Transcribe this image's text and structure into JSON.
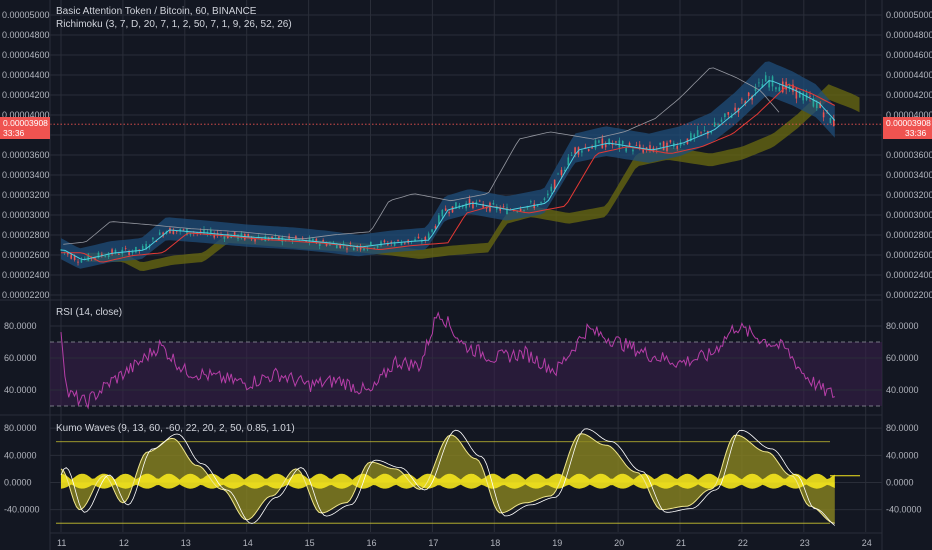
{
  "header": {
    "title": "Basic Attention Token / Bitcoin, 60, BINANCE",
    "indicator": "Richimoku (3, 7, D, 20, 7, 1, 2, 50, 7, 1, 9, 26, 52, 26)"
  },
  "price_badge": {
    "value": "0.00003908",
    "countdown": "33:36"
  },
  "colors": {
    "background": "#131722",
    "grid": "#2a2e39",
    "up_candle": "#26a69a",
    "down_candle": "#ef5350",
    "cloud_blue": "#1f4e79",
    "cloud_olive": "#6b6b10",
    "rsi_line": "#b63ea8",
    "rsi_band": "#3a1f4d",
    "kumo_yellow": "#f5e61d",
    "kumo_fill": "#8a8420",
    "price_line": "#ef5350"
  },
  "chart_data": [
    {
      "type": "candlestick",
      "title": "Basic Attention Token / Bitcoin, 60, BINANCE",
      "ylim": [
        2.2e-05,
        5e-05
      ],
      "y_ticks": [
        "0.00002200",
        "0.00002400",
        "0.00002600",
        "0.00002800",
        "0.00003000",
        "0.00003200",
        "0.00003400",
        "0.00003600",
        "0.00003800",
        "0.00004000",
        "0.00004200",
        "0.00004400",
        "0.00004600",
        "0.00004800",
        "0.00005000"
      ],
      "x_ticks": [
        "11",
        "12",
        "13",
        "14",
        "15",
        "16",
        "17",
        "18",
        "19",
        "20",
        "21",
        "22",
        "23",
        "24"
      ],
      "last_price": 3.908e-05,
      "trend": [
        {
          "day": 11.0,
          "price": 2.65e-05
        },
        {
          "day": 11.3,
          "price": 2.55e-05
        },
        {
          "day": 11.8,
          "price": 2.62e-05
        },
        {
          "day": 12.3,
          "price": 2.65e-05
        },
        {
          "day": 12.7,
          "price": 2.85e-05
        },
        {
          "day": 13.3,
          "price": 2.82e-05
        },
        {
          "day": 14.0,
          "price": 2.78e-05
        },
        {
          "day": 14.8,
          "price": 2.75e-05
        },
        {
          "day": 15.3,
          "price": 2.72e-05
        },
        {
          "day": 15.8,
          "price": 2.68e-05
        },
        {
          "day": 16.3,
          "price": 2.72e-05
        },
        {
          "day": 16.9,
          "price": 2.75e-05
        },
        {
          "day": 17.2,
          "price": 3.05e-05
        },
        {
          "day": 17.6,
          "price": 3.12e-05
        },
        {
          "day": 18.2,
          "price": 3.05e-05
        },
        {
          "day": 18.8,
          "price": 3.12e-05
        },
        {
          "day": 19.3,
          "price": 3.65e-05
        },
        {
          "day": 19.8,
          "price": 3.72e-05
        },
        {
          "day": 20.5,
          "price": 3.65e-05
        },
        {
          "day": 21.0,
          "price": 3.72e-05
        },
        {
          "day": 21.5,
          "price": 3.85e-05
        },
        {
          "day": 21.9,
          "price": 4.05e-05
        },
        {
          "day": 22.4,
          "price": 4.35e-05
        },
        {
          "day": 22.8,
          "price": 4.25e-05
        },
        {
          "day": 23.2,
          "price": 4.12e-05
        },
        {
          "day": 23.5,
          "price": 3.91e-05
        }
      ]
    },
    {
      "type": "line",
      "title": "RSI (14, close)",
      "ylim": [
        25,
        95
      ],
      "y_ticks": [
        "40.0000",
        "60.0000",
        "80.0000"
      ],
      "bands": [
        30,
        70
      ],
      "series": [
        {
          "values": [
            {
              "day": 11.0,
              "v": 78
            },
            {
              "day": 11.1,
              "v": 38
            },
            {
              "day": 11.4,
              "v": 32
            },
            {
              "day": 11.8,
              "v": 45
            },
            {
              "day": 12.2,
              "v": 55
            },
            {
              "day": 12.6,
              "v": 68
            },
            {
              "day": 13.0,
              "v": 52
            },
            {
              "day": 13.5,
              "v": 48
            },
            {
              "day": 14.0,
              "v": 44
            },
            {
              "day": 14.5,
              "v": 50
            },
            {
              "day": 15.0,
              "v": 43
            },
            {
              "day": 15.5,
              "v": 46
            },
            {
              "day": 16.0,
              "v": 38
            },
            {
              "day": 16.4,
              "v": 58
            },
            {
              "day": 16.8,
              "v": 55
            },
            {
              "day": 17.1,
              "v": 90
            },
            {
              "day": 17.5,
              "v": 68
            },
            {
              "day": 18.0,
              "v": 60
            },
            {
              "day": 18.5,
              "v": 63
            },
            {
              "day": 19.0,
              "v": 52
            },
            {
              "day": 19.5,
              "v": 78
            },
            {
              "day": 20.0,
              "v": 70
            },
            {
              "day": 20.5,
              "v": 62
            },
            {
              "day": 21.0,
              "v": 57
            },
            {
              "day": 21.5,
              "v": 62
            },
            {
              "day": 21.9,
              "v": 80
            },
            {
              "day": 22.3,
              "v": 72
            },
            {
              "day": 22.7,
              "v": 66
            },
            {
              "day": 23.0,
              "v": 50
            },
            {
              "day": 23.3,
              "v": 40
            },
            {
              "day": 23.5,
              "v": 37
            }
          ]
        }
      ]
    },
    {
      "type": "area",
      "title": "Kumo Waves (9, 13, 60, -60, 22, 20, 2, 50, 0.85, 1.01)",
      "ylim": [
        -70,
        95
      ],
      "y_ticks": [
        "-40.0000",
        "0.0000",
        "40.0000",
        "80.0000"
      ],
      "levels": [
        60,
        -60
      ],
      "series": [
        {
          "values": [
            {
              "day": 11.0,
              "v": 20
            },
            {
              "day": 11.3,
              "v": -40
            },
            {
              "day": 11.7,
              "v": 10
            },
            {
              "day": 12.0,
              "v": -30
            },
            {
              "day": 12.4,
              "v": 45
            },
            {
              "day": 12.8,
              "v": 65
            },
            {
              "day": 13.2,
              "v": 25
            },
            {
              "day": 13.6,
              "v": -10
            },
            {
              "day": 14.0,
              "v": -55
            },
            {
              "day": 14.4,
              "v": -20
            },
            {
              "day": 14.8,
              "v": 20
            },
            {
              "day": 15.2,
              "v": -45
            },
            {
              "day": 15.6,
              "v": -30
            },
            {
              "day": 16.0,
              "v": 30
            },
            {
              "day": 16.4,
              "v": 20
            },
            {
              "day": 16.8,
              "v": -10
            },
            {
              "day": 17.3,
              "v": 70
            },
            {
              "day": 17.7,
              "v": 35
            },
            {
              "day": 18.1,
              "v": -45
            },
            {
              "day": 18.5,
              "v": -30
            },
            {
              "day": 18.9,
              "v": -20
            },
            {
              "day": 19.4,
              "v": 72
            },
            {
              "day": 19.8,
              "v": 55
            },
            {
              "day": 20.3,
              "v": 15
            },
            {
              "day": 20.7,
              "v": -40
            },
            {
              "day": 21.1,
              "v": -35
            },
            {
              "day": 21.5,
              "v": -10
            },
            {
              "day": 21.9,
              "v": 70
            },
            {
              "day": 22.4,
              "v": 45
            },
            {
              "day": 22.8,
              "v": 10
            },
            {
              "day": 23.1,
              "v": -35
            },
            {
              "day": 23.5,
              "v": -60
            }
          ]
        }
      ]
    }
  ]
}
